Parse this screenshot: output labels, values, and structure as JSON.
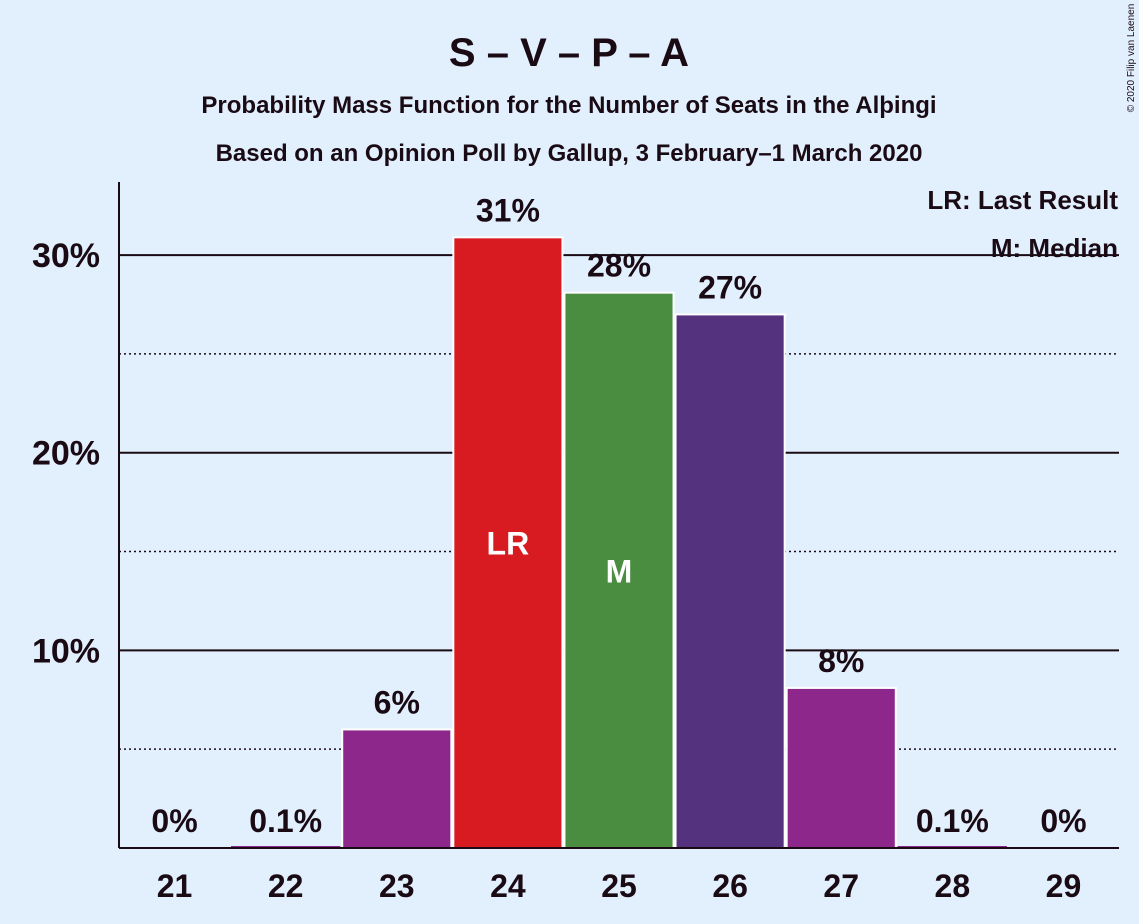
{
  "title": "S – V – P – A",
  "subtitle1": "Probability Mass Function for the Number of Seats in the Alþingi",
  "subtitle2": "Based on an Opinion Poll by Gallup, 3 February–1 March 2020",
  "copyright": "© 2020 Filip van Laenen",
  "legend": {
    "lr": "LR: Last Result",
    "m": "M: Median"
  },
  "chart_data": {
    "type": "bar",
    "categories": [
      "21",
      "22",
      "23",
      "24",
      "25",
      "26",
      "27",
      "28",
      "29"
    ],
    "values": [
      0,
      0.1,
      6,
      30.9,
      28.1,
      27,
      8.1,
      0.1,
      0
    ],
    "labels": [
      "0%",
      "0.1%",
      "6%",
      "31%",
      "28%",
      "27%",
      "8%",
      "0.1%",
      "0%"
    ],
    "colors": [
      "#8e278c",
      "#8e278c",
      "#8e278c",
      "#d71b21",
      "#4a8d40",
      "#55327e",
      "#8e278c",
      "#8e278c",
      "#8e278c"
    ],
    "markers": {
      "24": "LR",
      "25": "M"
    },
    "yticks": [
      10,
      20,
      30
    ],
    "ytick_labels": [
      "10%",
      "20%",
      "30%"
    ],
    "ylim": [
      0,
      33.7
    ],
    "grid": "solid at major ticks, dotted at minor ticks"
  }
}
